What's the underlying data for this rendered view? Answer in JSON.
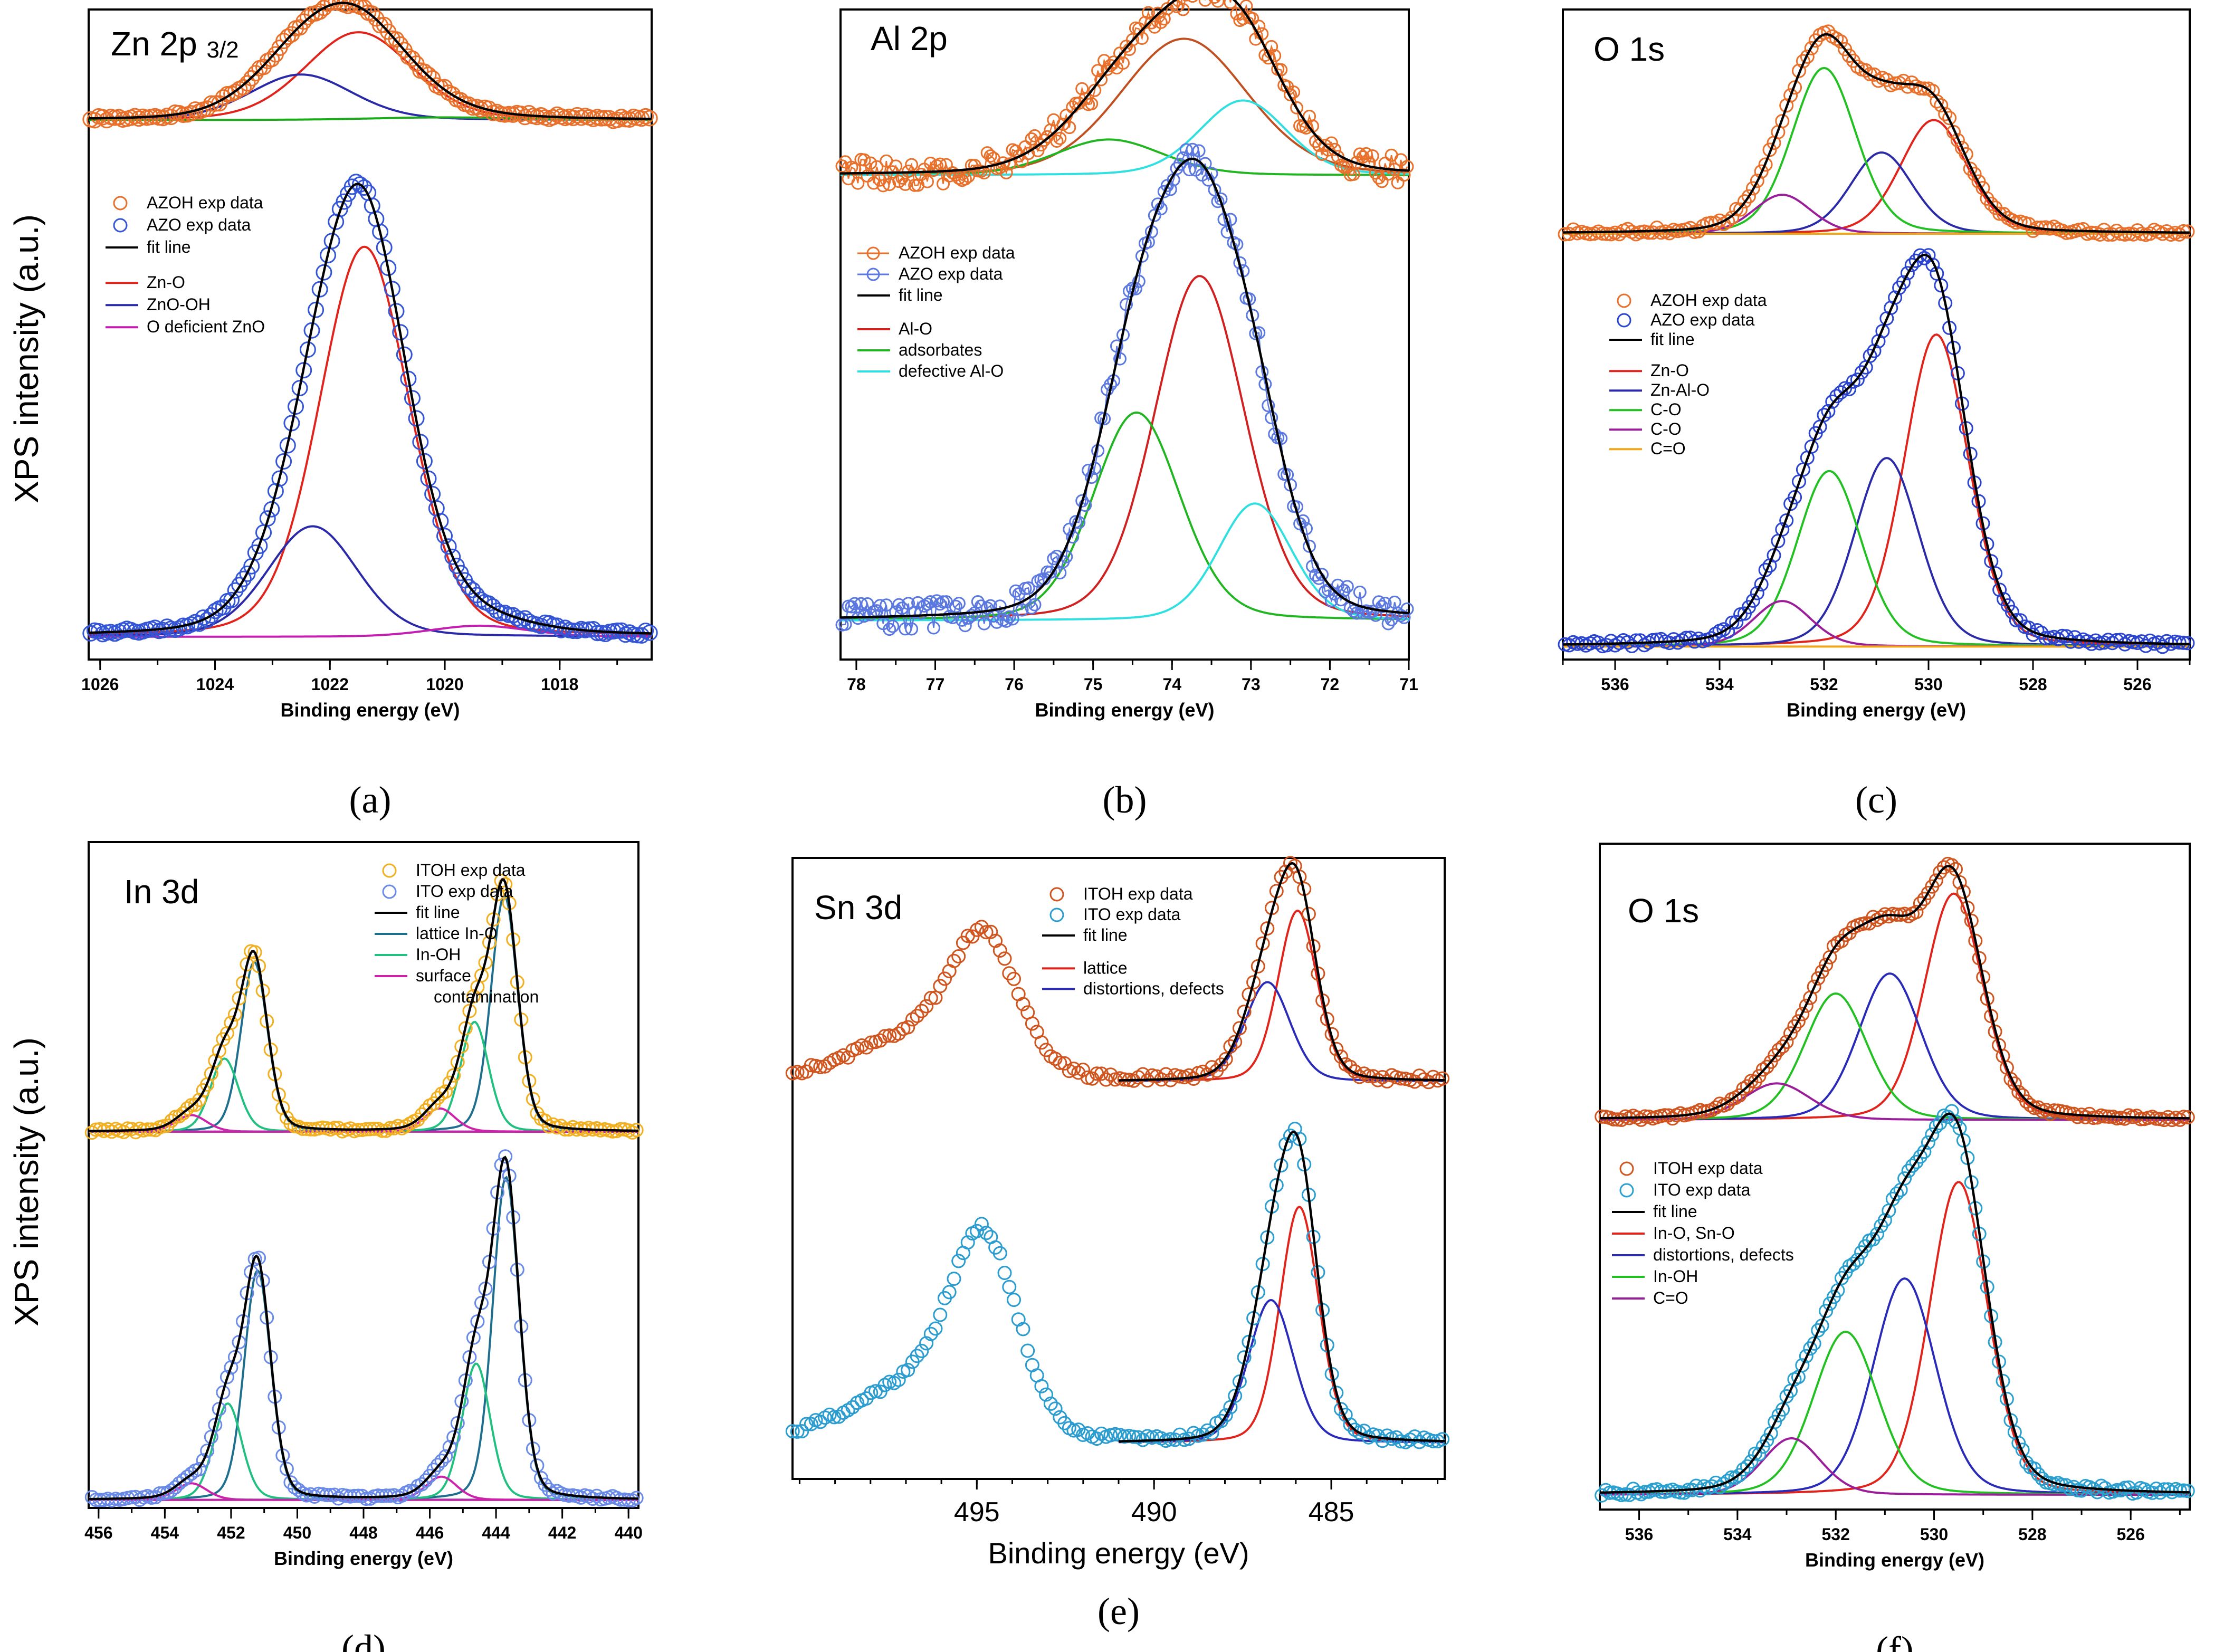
{
  "figure": {
    "ylabel": "XPS intensity (a.u.)"
  },
  "chart_data": [
    {
      "panel": "(a)",
      "type": "line",
      "title": "Zn 2p",
      "title_sub": "3/2",
      "xlabel": "Binding energy (eV)",
      "ylabel": "XPS intensity (a.u.)",
      "xlim": [
        1026.2,
        1016.4
      ],
      "ylim": [
        0,
        1.0
      ],
      "xticks": [
        1026,
        1024,
        1022,
        1020,
        1018
      ],
      "legend": [
        {
          "label": "AZOH exp data",
          "kind": "circle",
          "color": "#e8702a"
        },
        {
          "label": "AZO exp data",
          "kind": "circle",
          "color": "#3355d6"
        },
        {
          "label": "fit line",
          "kind": "line",
          "color": "#000000"
        },
        {
          "label": "",
          "kind": "gap"
        },
        {
          "label": "Zn-O",
          "kind": "line",
          "color": "#e0241c"
        },
        {
          "label": "ZnO-OH",
          "kind": "line",
          "color": "#2a2aa8"
        },
        {
          "label": "O deficient ZnO",
          "kind": "line",
          "color": "#c21eb0"
        }
      ],
      "stacks": [
        {
          "name": "AZOH",
          "baseline": 0.83,
          "color": "#e8702a",
          "step": 0.07,
          "noise": 0.004,
          "components": [
            {
              "name": "Zn-O",
              "center": 1021.5,
              "fwhm": 2.2,
              "amp": 0.135,
              "color": "#e0241c"
            },
            {
              "name": "ZnO-OH",
              "center": 1022.5,
              "fwhm": 2.1,
              "amp": 0.07,
              "color": "#2a2aa8"
            },
            {
              "name": "O deficient ZnO",
              "center": 1020.0,
              "fwhm": 3.0,
              "amp": 0.004,
              "color": "#1aaa1a"
            }
          ]
        },
        {
          "name": "AZO",
          "baseline": 0.035,
          "color": "#3355d6",
          "step": 0.07,
          "noise": 0.004,
          "components": [
            {
              "name": "Zn-O",
              "center": 1021.4,
              "fwhm": 1.85,
              "amp": 0.6,
              "color": "#e0241c"
            },
            {
              "name": "ZnO-OH",
              "center": 1022.3,
              "fwhm": 1.85,
              "amp": 0.17,
              "color": "#2a2aa8"
            },
            {
              "name": "O deficient ZnO",
              "center": 1019.4,
              "fwhm": 2.0,
              "amp": 0.017,
              "color": "#c21eb0"
            }
          ]
        }
      ]
    },
    {
      "panel": "(b)",
      "type": "line",
      "title": "Al 2p",
      "title_sub": "",
      "xlabel": "Binding energy (eV)",
      "ylabel": "XPS intensity (a.u.)",
      "xlim": [
        78.2,
        71.0
      ],
      "ylim": [
        0,
        1.0
      ],
      "xticks": [
        78,
        77,
        76,
        75,
        74,
        73,
        72,
        71
      ],
      "legend": [
        {
          "label": "AZOH exp data",
          "kind": "linecircle",
          "color": "#e8702a"
        },
        {
          "label": "AZO exp data",
          "kind": "linecircle",
          "color": "#5a78e0"
        },
        {
          "label": "fit line",
          "kind": "line",
          "color": "#000000"
        },
        {
          "label": "",
          "kind": "gap"
        },
        {
          "label": "Al-O",
          "kind": "line",
          "color": "#d02020"
        },
        {
          "label": "adsorbates",
          "kind": "line",
          "color": "#22b522"
        },
        {
          "label": "defective Al-O",
          "kind": "line",
          "color": "#30e0e0"
        }
      ],
      "stacks": [
        {
          "name": "AZOH",
          "baseline": 0.745,
          "color": "#e8702a",
          "step": 0.04,
          "noise": 0.022,
          "connected": true,
          "components": [
            {
              "name": "Al-O",
              "center": 73.85,
              "fwhm": 1.9,
              "amp": 0.21,
              "color": "#c05020"
            },
            {
              "name": "adsorbates",
              "center": 74.8,
              "fwhm": 1.6,
              "amp": 0.055,
              "color": "#22b522"
            },
            {
              "name": "defective Al-O",
              "center": 73.1,
              "fwhm": 1.3,
              "amp": 0.115,
              "color": "#30e0e0"
            }
          ]
        },
        {
          "name": "AZO",
          "baseline": 0.06,
          "color": "#5a78e0",
          "step": 0.04,
          "noise": 0.022,
          "connected": true,
          "components": [
            {
              "name": "Al-O",
              "center": 73.65,
              "fwhm": 1.35,
              "amp": 0.53,
              "color": "#d02020"
            },
            {
              "name": "adsorbates",
              "center": 74.45,
              "fwhm": 1.3,
              "amp": 0.32,
              "color": "#22b522"
            },
            {
              "name": "defective Al-O",
              "center": 72.95,
              "fwhm": 1.1,
              "amp": 0.18,
              "color": "#30e0e0"
            }
          ]
        }
      ]
    },
    {
      "panel": "(c)",
      "type": "line",
      "title": "O 1s",
      "title_sub": "",
      "xlabel": "Binding energy (eV)",
      "ylabel": "XPS intensity (a.u.)",
      "xlim": [
        537.0,
        525.0
      ],
      "ylim": [
        0,
        1.0
      ],
      "xticks": [
        536,
        534,
        532,
        530,
        528,
        526
      ],
      "legend": [
        {
          "label": "AZOH exp data",
          "kind": "circle",
          "color": "#e8702a"
        },
        {
          "label": "AZO exp data",
          "kind": "circle",
          "color": "#2a44d0"
        },
        {
          "label": "fit line",
          "kind": "line",
          "color": "#000000"
        },
        {
          "label": "",
          "kind": "gap"
        },
        {
          "label": "Zn-O",
          "kind": "line",
          "color": "#e0241c"
        },
        {
          "label": "Zn-Al-O",
          "kind": "line",
          "color": "#2a2aa8"
        },
        {
          "label": "C-O",
          "kind": "line",
          "color": "#22c022"
        },
        {
          "label": "C-O",
          "kind": "line",
          "color": "#9a1e9a"
        },
        {
          "label": "C=O",
          "kind": "line",
          "color": "#f2a61a"
        }
      ],
      "stacks": [
        {
          "name": "AZOH",
          "baseline": 0.655,
          "color": "#e8702a",
          "step": 0.08,
          "noise": 0.005,
          "components": [
            {
              "name": "Zn-O",
              "center": 529.9,
              "fwhm": 1.5,
              "amp": 0.175,
              "color": "#e0241c"
            },
            {
              "name": "Zn-Al-O",
              "center": 530.9,
              "fwhm": 1.4,
              "amp": 0.125,
              "color": "#2a2aa8"
            },
            {
              "name": "C-O",
              "center": 532.0,
              "fwhm": 1.45,
              "amp": 0.255,
              "color": "#22c022"
            },
            {
              "name": "C-O",
              "center": 532.8,
              "fwhm": 1.3,
              "amp": 0.06,
              "color": "#9a1e9a"
            },
            {
              "name": "C=O",
              "center": 534.0,
              "fwhm": 2.0,
              "amp": 0.0,
              "color": "#f2a61a"
            }
          ]
        },
        {
          "name": "AZO",
          "baseline": 0.02,
          "color": "#2a44d0",
          "step": 0.08,
          "noise": 0.005,
          "components": [
            {
              "name": "Zn-O",
              "center": 529.85,
              "fwhm": 1.45,
              "amp": 0.48,
              "color": "#e0241c"
            },
            {
              "name": "Zn-Al-O",
              "center": 530.8,
              "fwhm": 1.45,
              "amp": 0.29,
              "color": "#2a2aa8"
            },
            {
              "name": "C-O",
              "center": 531.9,
              "fwhm": 1.45,
              "amp": 0.27,
              "color": "#22c022"
            },
            {
              "name": "C-O",
              "center": 532.8,
              "fwhm": 1.3,
              "amp": 0.07,
              "color": "#9a1e9a"
            },
            {
              "name": "C=O",
              "center": 534.0,
              "fwhm": 2.0,
              "amp": 0.0,
              "color": "#f2a61a"
            }
          ]
        }
      ]
    },
    {
      "panel": "(d)",
      "type": "line",
      "title": "In 3d",
      "title_sub": "",
      "xlabel": "Binding energy (eV)",
      "ylabel": "XPS intensity (a.u.)",
      "xlim": [
        456.3,
        439.7
      ],
      "ylim": [
        0,
        1.0
      ],
      "xticks": [
        456,
        454,
        452,
        450,
        448,
        446,
        444,
        442,
        440
      ],
      "legend": [
        {
          "label": "ITOH exp data",
          "kind": "circle",
          "color": "#f2b020"
        },
        {
          "label": "ITO exp data",
          "kind": "circle",
          "color": "#6a8ae8"
        },
        {
          "label": "fit line",
          "kind": "line",
          "color": "#000000"
        },
        {
          "label": "lattice In-O",
          "kind": "line",
          "color": "#1e6e8e"
        },
        {
          "label": "In-OH",
          "kind": "line",
          "color": "#22c080"
        },
        {
          "label": "surface",
          "kind": "line",
          "color": "#cc22aa"
        },
        {
          "label": "contamination",
          "kind": "indent"
        }
      ],
      "stacks": [
        {
          "name": "ITOH",
          "baseline": 0.565,
          "color": "#f2b020",
          "step": 0.12,
          "noise": 0.003,
          "components": [
            {
              "name": "lattice In-O",
              "center": 451.3,
              "fwhm": 0.95,
              "amp": 0.255,
              "color": "#1e6e8e"
            },
            {
              "name": "In-OH",
              "center": 452.2,
              "fwhm": 1.0,
              "amp": 0.11,
              "color": "#22c080"
            },
            {
              "name": "surface contamination",
              "center": 453.2,
              "fwhm": 1.1,
              "amp": 0.025,
              "color": "#cc22aa"
            },
            {
              "name": "lattice In-O",
              "center": 443.75,
              "fwhm": 0.95,
              "amp": 0.355,
              "color": "#1e6e8e"
            },
            {
              "name": "In-OH",
              "center": 444.65,
              "fwhm": 1.0,
              "amp": 0.165,
              "color": "#22c080"
            },
            {
              "name": "surface contamination",
              "center": 445.7,
              "fwhm": 1.1,
              "amp": 0.035,
              "color": "#cc22aa"
            }
          ]
        },
        {
          "name": "ITO",
          "baseline": 0.012,
          "color": "#6a8ae8",
          "step": 0.12,
          "noise": 0.003,
          "components": [
            {
              "name": "lattice In-O",
              "center": 451.2,
              "fwhm": 0.95,
              "amp": 0.345,
              "color": "#1e6e8e"
            },
            {
              "name": "In-OH",
              "center": 452.1,
              "fwhm": 1.0,
              "amp": 0.145,
              "color": "#22c080"
            },
            {
              "name": "surface contamination",
              "center": 453.2,
              "fwhm": 1.1,
              "amp": 0.025,
              "color": "#cc22aa"
            },
            {
              "name": "lattice In-O",
              "center": 443.7,
              "fwhm": 0.95,
              "amp": 0.485,
              "color": "#1e6e8e"
            },
            {
              "name": "In-OH",
              "center": 444.6,
              "fwhm": 1.0,
              "amp": 0.205,
              "color": "#22c080"
            },
            {
              "name": "surface contamination",
              "center": 445.65,
              "fwhm": 1.1,
              "amp": 0.035,
              "color": "#cc22aa"
            }
          ]
        }
      ]
    },
    {
      "panel": "(e)",
      "type": "line",
      "title": "Sn 3d",
      "title_sub": "",
      "xlabel": "Binding energy (eV)",
      "ylabel": "XPS intensity (a.u.)",
      "xlim": [
        500.2,
        481.8
      ],
      "ylim": [
        0,
        1.0
      ],
      "xticks": [
        495,
        490,
        485
      ],
      "legend": [
        {
          "label": "ITOH exp data",
          "kind": "circle",
          "color": "#d0541e"
        },
        {
          "label": "ITO exp data",
          "kind": "circle",
          "color": "#2a9cd0"
        },
        {
          "label": "fit line",
          "kind": "line",
          "color": "#000000"
        },
        {
          "label": "",
          "kind": "gap"
        },
        {
          "label": "lattice",
          "kind": "line",
          "color": "#e0241c"
        },
        {
          "label": "distortions, defects",
          "kind": "line",
          "color": "#2a2ab8"
        }
      ],
      "stacks": [
        {
          "name": "ITOH",
          "baseline": 0.64,
          "color": "#d0541e",
          "step": 0.13,
          "noise": 0.006,
          "fit_range": [
            491.0,
            481.8
          ],
          "extra": [
            {
              "center": 494.8,
              "fwhm": 2.3,
              "amp": 0.215
            },
            {
              "center": 497.0,
              "fwhm": 4.0,
              "amp": 0.065
            }
          ],
          "components": [
            {
              "name": "lattice",
              "center": 485.95,
              "fwhm": 1.3,
              "amp": 0.275,
              "color": "#e0241c"
            },
            {
              "name": "distortions, defects",
              "center": 486.8,
              "fwhm": 1.5,
              "amp": 0.16,
              "color": "#2a2ab8"
            }
          ]
        },
        {
          "name": "ITO",
          "baseline": 0.058,
          "color": "#2a9cd0",
          "step": 0.13,
          "noise": 0.006,
          "fit_range": [
            491.0,
            481.8
          ],
          "extra": [
            {
              "center": 494.8,
              "fwhm": 2.3,
              "amp": 0.31
            },
            {
              "center": 497.0,
              "fwhm": 4.0,
              "amp": 0.08
            }
          ],
          "components": [
            {
              "name": "lattice",
              "center": 485.9,
              "fwhm": 1.3,
              "amp": 0.38,
              "color": "#e0241c"
            },
            {
              "name": "distortions, defects",
              "center": 486.7,
              "fwhm": 1.5,
              "amp": 0.23,
              "color": "#2a2ab8"
            }
          ]
        }
      ]
    },
    {
      "panel": "(f)",
      "type": "line",
      "title": "O 1s",
      "title_sub": "",
      "xlabel": "Binding energy (eV)",
      "ylabel": "XPS intensity (a.u.)",
      "xlim": [
        536.8,
        524.8
      ],
      "ylim": [
        0,
        1.0
      ],
      "xticks": [
        536,
        534,
        532,
        530,
        528,
        526
      ],
      "legend": [
        {
          "label": "ITOH exp data",
          "kind": "circle",
          "color": "#d0541e"
        },
        {
          "label": "ITO exp data",
          "kind": "circle",
          "color": "#2aa0d0"
        },
        {
          "label": "fit line",
          "kind": "line",
          "color": "#000000"
        },
        {
          "label": "In-O, Sn-O",
          "kind": "line",
          "color": "#e0241c"
        },
        {
          "label": "distortions, defects",
          "kind": "line",
          "color": "#2a2ab8"
        },
        {
          "label": "In-OH",
          "kind": "line",
          "color": "#22c022"
        },
        {
          "label": "C=O",
          "kind": "line",
          "color": "#9a1e9a"
        }
      ],
      "stacks": [
        {
          "name": "ITOH",
          "baseline": 0.585,
          "color": "#d0541e",
          "step": 0.08,
          "noise": 0.004,
          "components": [
            {
              "name": "In-O, Sn-O",
              "center": 529.6,
              "fwhm": 1.4,
              "amp": 0.34,
              "color": "#e0241c"
            },
            {
              "name": "distortions, defects",
              "center": 530.9,
              "fwhm": 1.5,
              "amp": 0.22,
              "color": "#2a2ab8"
            },
            {
              "name": "In-OH",
              "center": 532.0,
              "fwhm": 1.5,
              "amp": 0.19,
              "color": "#22c022"
            },
            {
              "name": "C=O",
              "center": 533.2,
              "fwhm": 1.6,
              "amp": 0.055,
              "color": "#9a1e9a"
            }
          ]
        },
        {
          "name": "ITO",
          "baseline": 0.022,
          "color": "#2aa0d0",
          "step": 0.08,
          "noise": 0.005,
          "components": [
            {
              "name": "In-O, Sn-O",
              "center": 529.5,
              "fwhm": 1.4,
              "amp": 0.47,
              "color": "#e0241c"
            },
            {
              "name": "distortions, defects",
              "center": 530.6,
              "fwhm": 1.5,
              "amp": 0.325,
              "color": "#2a2ab8"
            },
            {
              "name": "In-OH",
              "center": 531.8,
              "fwhm": 1.55,
              "amp": 0.245,
              "color": "#22c022"
            },
            {
              "name": "C=O",
              "center": 532.9,
              "fwhm": 1.4,
              "amp": 0.085,
              "color": "#9a1e9a"
            }
          ]
        }
      ]
    }
  ]
}
